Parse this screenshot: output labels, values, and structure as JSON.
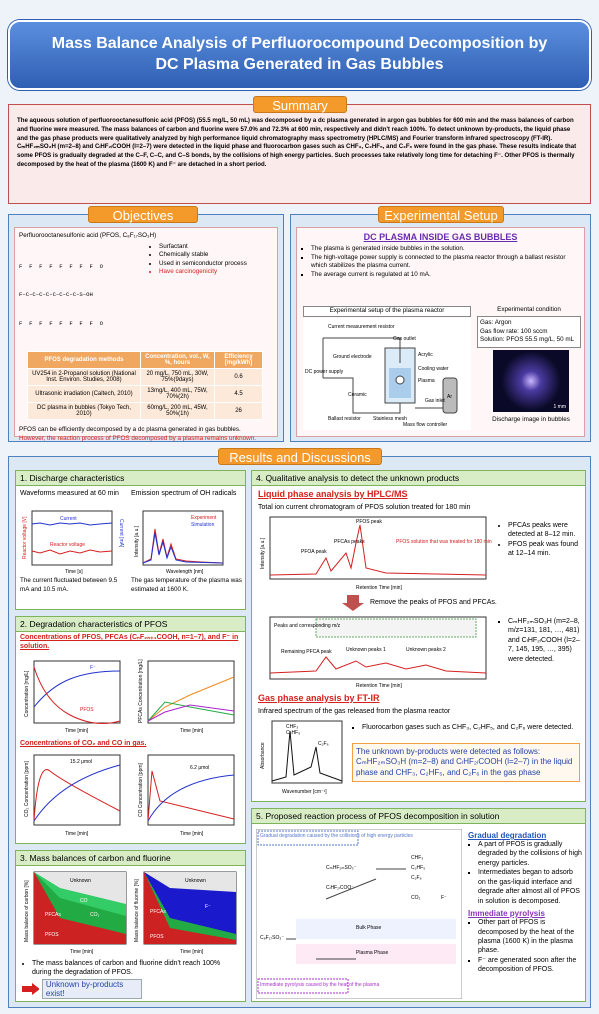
{
  "header": {
    "title": "Mass Balance Analysis of Perfluorocompound Decomposition by DC Plasma Generated in Gas Bubbles"
  },
  "summary": {
    "heading": "Summary",
    "text": "The aqueous solution of perfluorooctanesulfonic acid (PFOS) (55.5 mg/L, 50 mL) was decomposed by a dc plasma generated in argon gas bubbles for 600 min and the mass balances of carbon and fluorine were measured. The mass balances of carbon and fluorine were 57.0% and 72.3% at 600 min, respectively and didn't reach 100%. To detect unknown by-products, the liquid phase and the gas phase products were qualitatively analyzed by high performance liquid chromatography mass spectrometry (HPLC/MS) and Fourier transform infrared spectroscopy (FT-IR). CₘHF₂ₘSO₃H (m=2–8) and CₗHF₂ₗCOOH (l=2–7) were detected in the liquid phase and fluorocarbon gases such as CHF₃, C₂HF₅, and C₂F₆ were found in the gas phase. These results indicate that some PFOS is gradually degraded at the C–F, C–C, and C–S bonds, by the collisions of high energy particles. Such processes take relatively long time for detaching F⁻. Other PFOS is thermally decomposed by the heat of the plasma (1600 K) and F⁻ are detached in a short period."
  },
  "objectives": {
    "heading": "Objectives",
    "compound": "Perfluorooctanesulfonic acid (PFOS, C₈F₁₇SO₃H)",
    "structure": [
      "F  F  F  F  F  F  F  F  O",
      "F–C–C–C–C–C–C–C–C–S–OH",
      "F  F  F  F  F  F  F  F  O"
    ],
    "properties": [
      "Surfactant",
      "Chemically stable",
      "Used in semiconductor process",
      "Have carcinogenicity"
    ],
    "table": {
      "header": [
        "PFOS degradation methods",
        "Concentration, vol., W, %, hours",
        "Efficiency [mg/kWh]"
      ],
      "rows": [
        [
          "UV254 in 2-Propanol solution (National Inst. Environ. Studies, 2008)",
          "20 mg/L, 750 mL, 30W, 75%(9days)",
          "0.6"
        ],
        [
          "Ultrasonic irradiation (Caltech, 2010)",
          "13mg/L, 400 mL, 75W, 70%(2h)",
          "4.5"
        ],
        [
          "DC plasma in bubbles (Tokyo Tech, 2010)",
          "60mg/L, 200 mL, 45W, 50%(1h)",
          "26"
        ]
      ]
    },
    "note": "PFOS can be efficiently decomposed by a dc plasma generated in gas bubbles.",
    "note_red": "However, the reaction process of PFOS decomposed by a plasma remains unknown."
  },
  "setup": {
    "heading": "Experimental Setup",
    "title": "DC PLASMA INSIDE GAS BUBBLES",
    "bullets": [
      "The plasma is generated inside bubbles in the solution.",
      "The high-voltage power supply is connected to the plasma reactor through a ballast resistor which stabilizes the plasma current.",
      "The average current is regulated at 10 mA."
    ],
    "diagram_caption": "Experimental setup of the plasma reactor",
    "diagram_labels": [
      "Current measurement resistor",
      "DC power supply",
      "Ground electrode",
      "Ceramic",
      "Ballast resistor",
      "Stainless mesh",
      "Mass flow controller",
      "Gas outlet",
      "Acrylic",
      "Cooling water",
      "Plasma",
      "Gas inlet",
      "Ar"
    ],
    "condition_title": "Experimental condition",
    "conditions": [
      "Gas: Argon",
      "Gas flow rate: 100 sccm",
      "Solution: PFOS 55.5 mg/L, 50 mL"
    ],
    "image_caption": "Discharge image in bubbles",
    "scale": "1 mm"
  },
  "results": {
    "heading": "Results and Discussions",
    "p1": {
      "title": "1. Discharge characteristics",
      "left_title": "Waveforms measured at 60 min",
      "left_labels": [
        "Current",
        "Reactor voltage",
        "Reactor voltage [V]",
        "Current [mA]",
        "Time [s]"
      ],
      "left_caption": "The current fluctuated between 9.5 mA and 10.5 mA.",
      "right_title": "Emission spectrum of OH radicals",
      "right_labels": [
        "Experiment",
        "Simulation",
        "Intensity [a.u.]",
        "Wavelength [nm]"
      ],
      "right_caption": "The gas temperature of the plasma was estimated at 1600 K."
    },
    "p2": {
      "title": "2. Degradation characteristics of PFOS",
      "sub1": "Concentrations of PFOS, PFCAs (CₙF₂ₙ₊₁COOH, n=1–7), and F⁻ in solution.",
      "labels1": [
        "F⁻",
        "PFOS",
        "Concentration [mg/L]",
        "Time [min]",
        "PFCAs Concentration [mg/L]"
      ],
      "sub2": "Concentrations of CO₂ and CO in gas.",
      "labels2": [
        "15.2 μmol",
        "6.2 μmol",
        "CO₂ Concentration [ppm]",
        "CO Concentration [ppm]"
      ]
    },
    "p3": {
      "title": "3. Mass balances of carbon and fluorine",
      "labels": [
        "Unknown",
        "CO",
        "CO₂",
        "PFCAs",
        "PFOS",
        "F⁻",
        "Mass balance of carbon [%]",
        "Mass balance of fluorine [%]"
      ],
      "bullet": "The mass balances of carbon and fluorine didn't reach 100% during the degradation of PFOS.",
      "arrow": "Unknown by-products exist!"
    },
    "p4": {
      "title": "4. Qualitative analysis to detect the unknown products",
      "liquid": "Liquid phase analysis by HPLC/MS",
      "chrom_title": "Total ion current chromatogram of PFOS solution treated for 180 min",
      "chrom_labels": [
        "PFOS peak",
        "PFOA peak",
        "PFCAs peaks",
        "PFOS solution that was treated for 180 min",
        "Retention Time [min]",
        "Intensity [a.u.]"
      ],
      "chrom_bullets": [
        "PFCAs peaks were detected at 8–12 min.",
        "PFOS peak was found at 12–14 min."
      ],
      "remove": "Remove the peaks of PFOS and PFCAs.",
      "chrom2_labels": [
        "Peaks and corresponding m/z",
        "Remaining PFCA peak",
        "Unknown peaks 1",
        "Unknown peaks 2"
      ],
      "chrom2_bullet": "CₘHF₂ₘSO₃H (m=2–8, m/z=131, 181, …, 481) and CₗHF₂ₗCOOH (l=2–7, 145, 195, …, 395) were detected.",
      "gas": "Gas phase analysis by FT-IR",
      "ir_title": "Infrared spectrum of the gas released from the plasma reactor",
      "ir_labels": [
        "CHF₃",
        "C₂HF₅",
        "C₂F₆",
        "Absorbance",
        "Wavenumber [cm⁻¹]"
      ],
      "ir_bullet": "Fluorocarbon gases such as CHF₃, C₂HF₅, and C₂F₆ were detected.",
      "conclusion": "The unknown by-products were detected as follows: CₘHF₂ₘSO₃H (m=2–8) and CₗHF₂ₗCOOH (l=2–7) in the liquid phase and CHF₃, C₂HF₅, and C₂F₆ in the gas phase"
    },
    "p5": {
      "title": "5. Proposed reaction process of PFOS decomposition in solution",
      "diagram": [
        "Gradual degradation caused by the collisions of high energy particles",
        "Immediate pyrolysis caused by the heat of the plasma",
        "Bulk Phase",
        "Plasma Phase",
        "C₈F₁₇SO₃⁻",
        "CₘHF₂ₘSO₃⁻",
        "CₗHF₂ₗCOO⁻",
        "CHF₃",
        "C₂HF₅",
        "C₂F₆",
        "CO₂",
        "F⁻"
      ],
      "gradual": "Gradual degradation",
      "gradual_bullets": [
        "A part of PFOS is gradually degraded by the collisions of high energy particles.",
        "Intermediates began to adsorb on the gas-liquid interface and degrade after almost all of PFOS in solution is decomposed."
      ],
      "pyrolysis": "Immediate pyrolysis",
      "pyrolysis_bullets": [
        "Other part of PFOS is decomposed by the heat of the plasma (1600 K) in the plasma phase.",
        "F⁻ are generated soon after the decomposition of PFOS."
      ]
    }
  }
}
